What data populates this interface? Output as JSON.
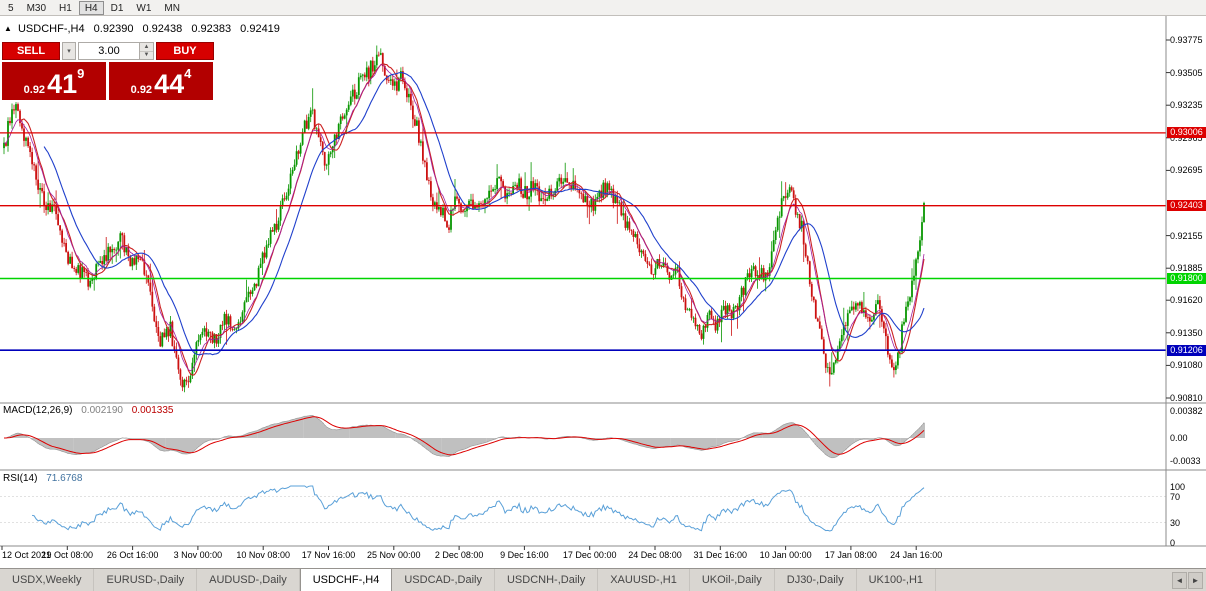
{
  "toolbar": {
    "timeframes": [
      "5",
      "M30",
      "H1",
      "H4",
      "D1",
      "W1",
      "MN"
    ],
    "active": "H4"
  },
  "quote_header": {
    "marker": "▲",
    "symbol": "USDCHF-,H4",
    "open": "0.92390",
    "high": "0.92438",
    "low": "0.92383",
    "close": "0.92419"
  },
  "trade_widget": {
    "sell_label": "SELL",
    "buy_label": "BUY",
    "volume": "3.00",
    "menu_glyph": "▾",
    "spin_up": "▲",
    "spin_down": "▼",
    "bid": {
      "big": "0.92",
      "mid": "41",
      "sup": "9"
    },
    "ask": {
      "big": "0.92",
      "mid": "44",
      "sup": "4"
    }
  },
  "tabs": {
    "items": [
      "USDX,Weekly",
      "EURUSD-,Daily",
      "AUDUSD-,Daily",
      "USDCHF-,H4",
      "USDCAD-,Daily",
      "USDCNH-,Daily",
      "XAUUSD-,H1",
      "UKOil-,Daily",
      "DJ30-,Daily",
      "UK100-,H1"
    ],
    "active": "USDCHF-,H4",
    "scroll_left": "◄",
    "scroll_right": "►"
  },
  "chart_data": {
    "type": "candlestick",
    "symbol": "USDCHF-",
    "timeframe": "H4",
    "ylim": [
      0.9081,
      0.93775
    ],
    "y_labels": [
      "0.93775",
      "0.93505",
      "0.93235",
      "0.92965",
      "0.92695",
      "0.92155",
      "0.91885",
      "0.91620",
      "0.91350",
      "0.91080",
      "0.90810"
    ],
    "x_labels": [
      "12 Oct 2021",
      "19 Oct 08:00",
      "26 Oct 16:00",
      "3 Nov 00:00",
      "10 Nov 08:00",
      "17 Nov 16:00",
      "25 Nov 00:00",
      "2 Dec 08:00",
      "9 Dec 16:00",
      "17 Dec 00:00",
      "24 Dec 08:00",
      "31 Dec 16:00",
      "10 Jan 00:00",
      "17 Jan 08:00",
      "24 Jan 16:00"
    ],
    "horizontal_lines": [
      {
        "price": 0.93006,
        "label": "0.93006",
        "color": "#dd0000",
        "width": 1.3
      },
      {
        "price": 0.92403,
        "label": "0.92403",
        "color": "#dd0000",
        "width": 1.3
      },
      {
        "price": 0.918,
        "label": "0.91800",
        "color": "#00d400",
        "width": 1.6
      },
      {
        "price": 0.91206,
        "label": "0.91206",
        "color": "#0000bb",
        "width": 1.6
      }
    ],
    "candle_colors": {
      "up": "#089600",
      "down": "#cc1111"
    },
    "overlays": [
      {
        "name": "ma-fast-red",
        "period": 9,
        "kind": "sma",
        "color": "#cc2222",
        "width": 1.1
      },
      {
        "name": "ma-fast-magenta",
        "period": 9,
        "kind": "ema",
        "color": "#a020a0",
        "width": 0.8
      },
      {
        "name": "ma-slow-blue",
        "period": 21,
        "kind": "sma",
        "color": "#2040cc",
        "width": 1.1
      }
    ],
    "indicators": [
      {
        "id": "macd",
        "name": "MACD(12,26,9)",
        "values": [
          "0.002190",
          "0.001335"
        ],
        "axis_labels": [
          "0.00382",
          "0.00",
          "-0.0033"
        ],
        "histogram_color": "#c0c0c0",
        "signal_color": "#dd0000"
      },
      {
        "id": "rsi",
        "name": "RSI(14)",
        "value": "71.6768",
        "axis_labels": [
          "100",
          "70",
          "30",
          "0"
        ],
        "line_color": "#5aa0d8"
      }
    ],
    "price_path": [
      [
        4,
        0.9288
      ],
      [
        10,
        0.9312
      ],
      [
        16,
        0.932
      ],
      [
        24,
        0.93
      ],
      [
        34,
        0.9268
      ],
      [
        44,
        0.9245
      ],
      [
        56,
        0.9232
      ],
      [
        66,
        0.92
      ],
      [
        78,
        0.9188
      ],
      [
        90,
        0.9178
      ],
      [
        100,
        0.919
      ],
      [
        112,
        0.9205
      ],
      [
        122,
        0.9215
      ],
      [
        130,
        0.9188
      ],
      [
        140,
        0.92
      ],
      [
        150,
        0.9165
      ],
      [
        160,
        0.9128
      ],
      [
        170,
        0.914
      ],
      [
        180,
        0.9098
      ],
      [
        188,
        0.909
      ],
      [
        196,
        0.9122
      ],
      [
        206,
        0.9138
      ],
      [
        216,
        0.9128
      ],
      [
        226,
        0.9148
      ],
      [
        236,
        0.9138
      ],
      [
        246,
        0.9158
      ],
      [
        256,
        0.9178
      ],
      [
        266,
        0.9208
      ],
      [
        276,
        0.9225
      ],
      [
        286,
        0.925
      ],
      [
        296,
        0.9282
      ],
      [
        306,
        0.9308
      ],
      [
        312,
        0.9322
      ],
      [
        318,
        0.9295
      ],
      [
        326,
        0.9272
      ],
      [
        334,
        0.9292
      ],
      [
        342,
        0.9318
      ],
      [
        352,
        0.933
      ],
      [
        362,
        0.9345
      ],
      [
        372,
        0.9355
      ],
      [
        380,
        0.937
      ],
      [
        388,
        0.9342
      ],
      [
        396,
        0.9338
      ],
      [
        402,
        0.935
      ],
      [
        410,
        0.9325
      ],
      [
        418,
        0.9302
      ],
      [
        426,
        0.9268
      ],
      [
        432,
        0.924
      ],
      [
        440,
        0.9238
      ],
      [
        448,
        0.9222
      ],
      [
        456,
        0.9245
      ],
      [
        464,
        0.9235
      ],
      [
        472,
        0.9242
      ],
      [
        480,
        0.9236
      ],
      [
        490,
        0.9256
      ],
      [
        500,
        0.9262
      ],
      [
        508,
        0.9246
      ],
      [
        516,
        0.9262
      ],
      [
        524,
        0.925
      ],
      [
        534,
        0.9256
      ],
      [
        544,
        0.9244
      ],
      [
        554,
        0.9252
      ],
      [
        564,
        0.9266
      ],
      [
        574,
        0.9256
      ],
      [
        584,
        0.9248
      ],
      [
        594,
        0.9242
      ],
      [
        604,
        0.9256
      ],
      [
        614,
        0.9248
      ],
      [
        624,
        0.923
      ],
      [
        634,
        0.9214
      ],
      [
        644,
        0.9198
      ],
      [
        652,
        0.9185
      ],
      [
        660,
        0.9196
      ],
      [
        668,
        0.918
      ],
      [
        676,
        0.9188
      ],
      [
        684,
        0.916
      ],
      [
        692,
        0.9146
      ],
      [
        700,
        0.913
      ],
      [
        708,
        0.915
      ],
      [
        716,
        0.914
      ],
      [
        724,
        0.9156
      ],
      [
        732,
        0.915
      ],
      [
        740,
        0.9164
      ],
      [
        748,
        0.9182
      ],
      [
        756,
        0.9188
      ],
      [
        764,
        0.918
      ],
      [
        772,
        0.9198
      ],
      [
        780,
        0.9235
      ],
      [
        788,
        0.9258
      ],
      [
        794,
        0.9242
      ],
      [
        802,
        0.9222
      ],
      [
        810,
        0.918
      ],
      [
        818,
        0.914
      ],
      [
        826,
        0.9108
      ],
      [
        832,
        0.9096
      ],
      [
        840,
        0.9132
      ],
      [
        848,
        0.9152
      ],
      [
        856,
        0.9162
      ],
      [
        864,
        0.9155
      ],
      [
        872,
        0.9148
      ],
      [
        878,
        0.9163
      ],
      [
        884,
        0.9142
      ],
      [
        890,
        0.9112
      ],
      [
        896,
        0.9106
      ],
      [
        902,
        0.9136
      ],
      [
        908,
        0.9158
      ],
      [
        914,
        0.9186
      ],
      [
        920,
        0.9218
      ],
      [
        924,
        0.9242
      ]
    ]
  }
}
